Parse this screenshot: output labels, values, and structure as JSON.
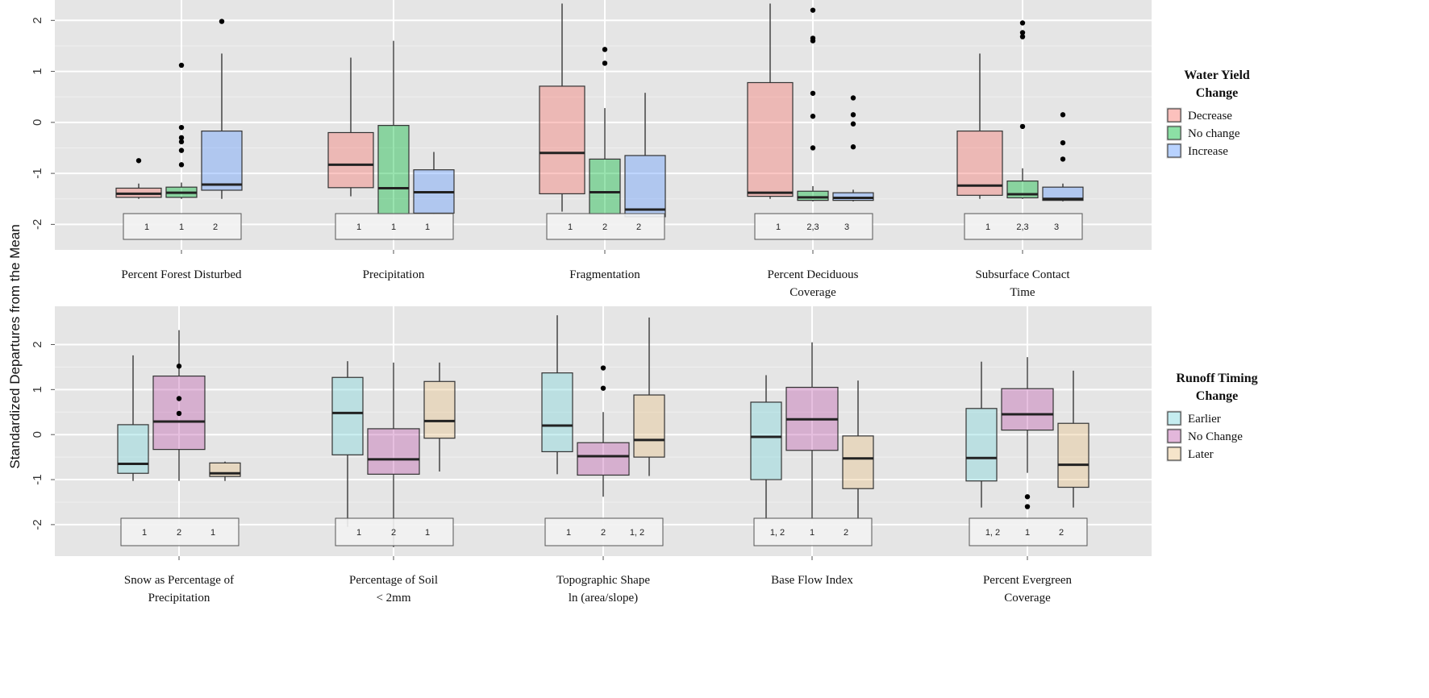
{
  "y_axis_title": "Standardized Departures from the Mean",
  "chart_data": [
    {
      "type": "boxplot",
      "legend": {
        "title": [
          "Water Yield",
          "Change"
        ],
        "entries": [
          {
            "name": "Decrease",
            "color": "#F8766D"
          },
          {
            "name": "No change",
            "color": "#00BA38"
          },
          {
            "name": "Increase",
            "color": "#619CFF"
          }
        ]
      },
      "ylim": [
        -2.5,
        2.4
      ],
      "yticks": [
        2,
        1,
        0,
        -1,
        -2
      ],
      "groups": [
        {
          "label": [
            "Percent Forest Disturbed"
          ],
          "letters": [
            "1",
            "1",
            "2"
          ],
          "boxes": [
            {
              "q1": -1.47,
              "median": -1.4,
              "q3": -1.29,
              "lo": -1.5,
              "hi": -1.2,
              "outliers": [
                -0.75
              ]
            },
            {
              "q1": -1.47,
              "median": -1.38,
              "q3": -1.27,
              "lo": -1.5,
              "hi": -1.18,
              "outliers": [
                1.12,
                -0.1,
                -0.3,
                -0.38,
                -0.55,
                -0.83
              ]
            },
            {
              "q1": -1.33,
              "median": -1.22,
              "q3": -0.17,
              "lo": -1.5,
              "hi": 1.35,
              "outliers": [
                1.98
              ]
            }
          ]
        },
        {
          "label": [
            "Precipitation"
          ],
          "letters": [
            "1",
            "1",
            "1"
          ],
          "boxes": [
            {
              "q1": -1.28,
              "median": -0.83,
              "q3": -0.2,
              "lo": -1.45,
              "hi": 1.27,
              "outliers": []
            },
            {
              "q1": -1.8,
              "median": -1.29,
              "q3": -0.06,
              "lo": -1.8,
              "hi": 1.6,
              "outliers": []
            },
            {
              "q1": -1.78,
              "median": -1.37,
              "q3": -0.93,
              "lo": -1.8,
              "hi": -0.58,
              "outliers": []
            }
          ]
        },
        {
          "label": [
            "Fragmentation"
          ],
          "letters": [
            "1",
            "2",
            "2"
          ],
          "boxes": [
            {
              "q1": -1.4,
              "median": -0.6,
              "q3": 0.71,
              "lo": -1.75,
              "hi": 2.33,
              "outliers": []
            },
            {
              "q1": -1.8,
              "median": -1.37,
              "q3": -0.72,
              "lo": -1.8,
              "hi": 0.28,
              "outliers": [
                1.43,
                1.16
              ]
            },
            {
              "q1": -1.85,
              "median": -1.71,
              "q3": -0.65,
              "lo": -1.85,
              "hi": 0.58,
              "outliers": []
            }
          ]
        },
        {
          "label": [
            "Percent Deciduous",
            "Coverage"
          ],
          "letters": [
            "1",
            "2,3",
            "3"
          ],
          "boxes": [
            {
              "q1": -1.45,
              "median": -1.38,
              "q3": 0.78,
              "lo": -1.5,
              "hi": 2.33,
              "outliers": []
            },
            {
              "q1": -1.53,
              "median": -1.47,
              "q3": -1.35,
              "lo": -1.55,
              "hi": -1.25,
              "outliers": [
                2.2,
                1.65,
                1.6,
                0.57,
                0.12,
                -0.5
              ]
            },
            {
              "q1": -1.53,
              "median": -1.48,
              "q3": -1.38,
              "lo": -1.55,
              "hi": -1.32,
              "outliers": [
                0.48,
                0.15,
                -0.03,
                -0.48
              ]
            }
          ]
        },
        {
          "label": [
            "Subsurface Contact",
            "Time"
          ],
          "letters": [
            "1",
            "2,3",
            "3"
          ],
          "boxes": [
            {
              "q1": -1.43,
              "median": -1.24,
              "q3": -0.17,
              "lo": -1.5,
              "hi": 1.35,
              "outliers": []
            },
            {
              "q1": -1.48,
              "median": -1.41,
              "q3": -1.15,
              "lo": -1.5,
              "hi": -0.9,
              "outliers": [
                1.95,
                1.76,
                1.68,
                -0.08
              ]
            },
            {
              "q1": -1.53,
              "median": -1.5,
              "q3": -1.27,
              "lo": -1.55,
              "hi": -1.2,
              "outliers": [
                0.15,
                -0.4,
                -0.72
              ]
            }
          ]
        }
      ]
    },
    {
      "type": "boxplot",
      "legend": {
        "title": [
          "Runoff  Timing",
          "Change"
        ],
        "entries": [
          {
            "name": "Earlier",
            "color": "#7ED8DD"
          },
          {
            "name": "No Change",
            "color": "#C060B0"
          },
          {
            "name": "Later",
            "color": "#E9C48A"
          }
        ]
      },
      "ylim": [
        -2.7,
        2.85
      ],
      "yticks": [
        2,
        1,
        0,
        -1,
        -2
      ],
      "groups": [
        {
          "label": [
            "Snow as Percentage of",
            "Precipitation"
          ],
          "letters": [
            "1",
            "2",
            "1"
          ],
          "boxes": [
            {
              "q1": -0.86,
              "median": -0.65,
              "q3": 0.22,
              "lo": -1.03,
              "hi": 1.76,
              "outliers": []
            },
            {
              "q1": -0.33,
              "median": 0.29,
              "q3": 1.3,
              "lo": -1.03,
              "hi": 2.32,
              "outliers": [
                1.52,
                0.8,
                0.47
              ]
            },
            {
              "q1": -0.93,
              "median": -0.86,
              "q3": -0.63,
              "lo": -1.03,
              "hi": -0.6,
              "outliers": []
            }
          ]
        },
        {
          "label": [
            "Percentage of Soil",
            "< 2mm"
          ],
          "letters": [
            "1",
            "2",
            "1"
          ],
          "boxes": [
            {
              "q1": -0.45,
              "median": 0.48,
              "q3": 1.27,
              "lo": -2.05,
              "hi": 1.63,
              "outliers": []
            },
            {
              "q1": -0.88,
              "median": -0.55,
              "q3": 0.13,
              "lo": -2.5,
              "hi": 1.6,
              "outliers": []
            },
            {
              "q1": -0.08,
              "median": 0.3,
              "q3": 1.18,
              "lo": -0.82,
              "hi": 1.6,
              "outliers": []
            }
          ]
        },
        {
          "label": [
            "Topographic Shape",
            "ln (area/slope)"
          ],
          "letters": [
            "1",
            "2",
            "1, 2"
          ],
          "boxes": [
            {
              "q1": -0.38,
              "median": 0.2,
              "q3": 1.37,
              "lo": -0.88,
              "hi": 2.65,
              "outliers": []
            },
            {
              "q1": -0.9,
              "median": -0.48,
              "q3": -0.18,
              "lo": -1.38,
              "hi": 0.5,
              "outliers": [
                1.48,
                1.03
              ]
            },
            {
              "q1": -0.5,
              "median": -0.12,
              "q3": 0.88,
              "lo": -0.92,
              "hi": 2.6,
              "outliers": []
            }
          ]
        },
        {
          "label": [
            "Base Flow Index"
          ],
          "letters": [
            "1, 2",
            "1",
            "2"
          ],
          "boxes": [
            {
              "q1": -1.0,
              "median": -0.05,
              "q3": 0.72,
              "lo": -1.88,
              "hi": 1.32,
              "outliers": []
            },
            {
              "q1": -0.35,
              "median": 0.34,
              "q3": 1.05,
              "lo": -1.88,
              "hi": 2.05,
              "outliers": []
            },
            {
              "q1": -1.2,
              "median": -0.53,
              "q3": -0.03,
              "lo": -1.88,
              "hi": 1.2,
              "outliers": []
            }
          ]
        },
        {
          "label": [
            "Percent Evergreen",
            "Coverage"
          ],
          "letters": [
            "1, 2",
            "1",
            "2"
          ],
          "boxes": [
            {
              "q1": -1.03,
              "median": -0.52,
              "q3": 0.58,
              "lo": -1.62,
              "hi": 1.62,
              "outliers": []
            },
            {
              "q1": 0.1,
              "median": 0.45,
              "q3": 1.02,
              "lo": -0.85,
              "hi": 1.72,
              "outliers": [
                -1.38,
                -1.6
              ]
            },
            {
              "q1": -1.17,
              "median": -0.67,
              "q3": 0.25,
              "lo": -1.62,
              "hi": 1.42,
              "outliers": []
            }
          ]
        }
      ]
    }
  ]
}
